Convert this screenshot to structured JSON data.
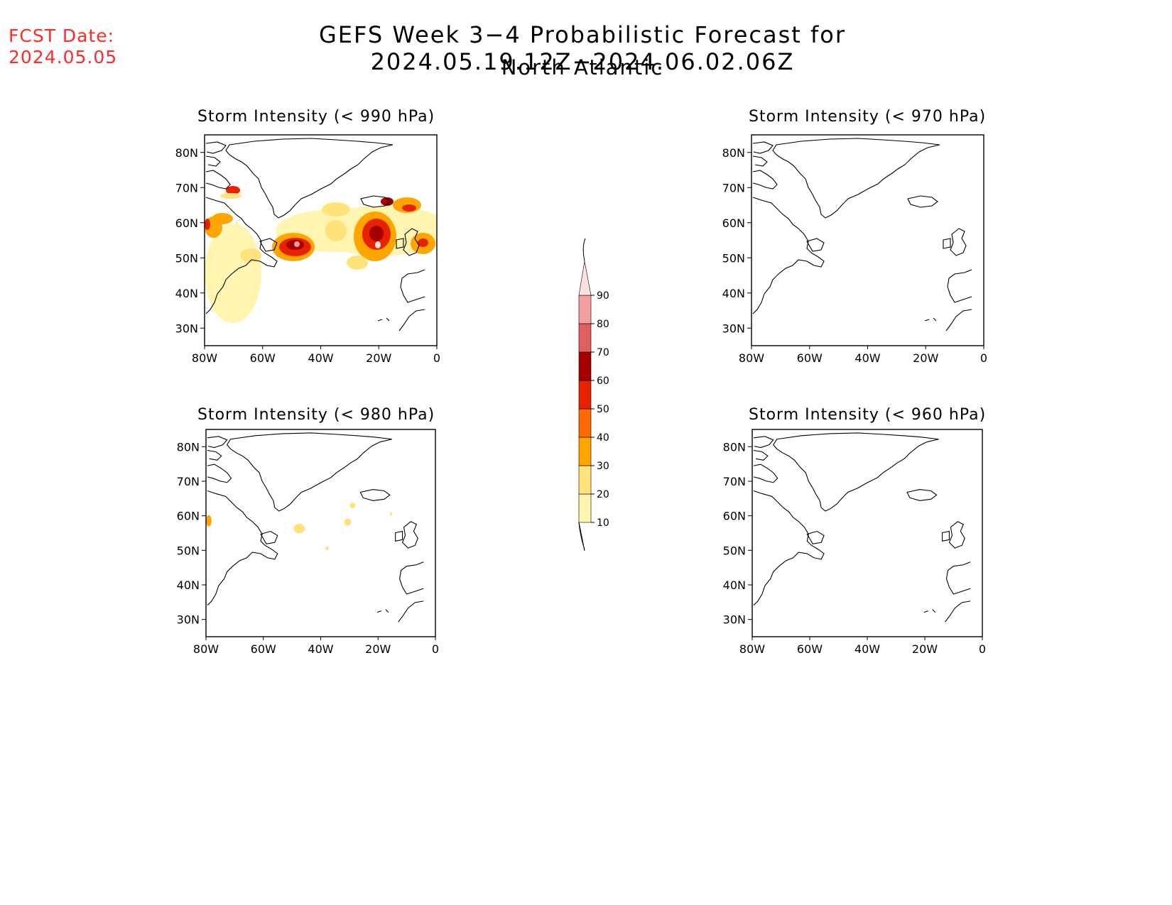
{
  "header": {
    "fcst_label": "FCST Date:",
    "fcst_date": "2024.05.05",
    "title": "GEFS Week 3−4 Probabilistic Forecast for 2024.05.19.12Z−2024.06.02.06Z",
    "subtitle": "North Atlantic"
  },
  "panels": [
    {
      "title": "Storm Intensity (< 990 hPa)"
    },
    {
      "title": "Storm Intensity (< 970 hPa)"
    },
    {
      "title": "Storm Intensity (< 980 hPa)"
    },
    {
      "title": "Storm Intensity (< 960 hPa)"
    }
  ],
  "axes": {
    "lat_ticks": [
      "80N",
      "70N",
      "60N",
      "50N",
      "40N",
      "30N"
    ],
    "lat_values": [
      80,
      70,
      60,
      50,
      40,
      30
    ],
    "lon_ticks": [
      "80W",
      "60W",
      "40W",
      "20W",
      "0"
    ],
    "lon_values": [
      -80,
      -60,
      -40,
      -20,
      0
    ],
    "lat_range": [
      25,
      85
    ],
    "lon_range": [
      -80,
      0
    ]
  },
  "colorbar": {
    "levels": [
      "10",
      "20",
      "30",
      "40",
      "50",
      "60",
      "70",
      "80",
      "90"
    ],
    "colors": [
      "#fff5b0",
      "#ffe27a",
      "#ffa500",
      "#ff6a00",
      "#e62200",
      "#a60000",
      "#e06060",
      "#f4a0a0",
      "#ffe0e0"
    ]
  }
}
